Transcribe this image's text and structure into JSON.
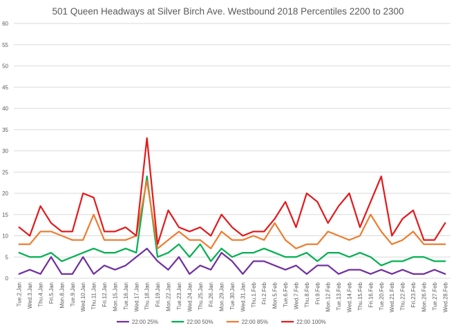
{
  "chart_data": {
    "type": "line",
    "title": "501 Queen Headways at Silver Birch Ave. Westbound 2018 Percentiles 2200 to 2300",
    "xlabel": "",
    "ylabel": "",
    "ylim": [
      0,
      60
    ],
    "yticks": [
      "0",
      "5",
      "10",
      "15",
      "20",
      "25",
      "30",
      "35",
      "40",
      "45",
      "50",
      "55",
      "60"
    ],
    "grid": true,
    "legend_position": "bottom",
    "categories": [
      "Tue.2.Jan",
      "Wed.3.Jan",
      "Thu.4.Jan",
      "Fri.5.Jan",
      "Mon.8.Jan",
      "Tue.9.Jan",
      "Wed.10.Jan",
      "Thu.11.Jan",
      "Fri.12.Jan",
      "Mon.15.Jan",
      "Tue.16.Jan",
      "Wed.17.Jan",
      "Thu.18.Jan",
      "Fri.19.Jan",
      "Mon.22.Jan",
      "Tue.23.Jan",
      "Wed.24.Jan",
      "Thu.25.Jan",
      "Fri.26.Jan",
      "Mon.29.Jan",
      "Tue.30.Jan",
      "Wed.31.Jan",
      "Thu.1.Feb",
      "Fri.2.Feb",
      "Mon.5.Feb",
      "Tue.6.Feb",
      "Wed.7.Feb",
      "Thu.8.Feb",
      "Fri.9.Feb",
      "Mon.12.Feb",
      "Tue.13.Feb",
      "Wed.14.Feb",
      "Thu.15.Feb",
      "Fri.16.Feb",
      "Tue.20.Feb",
      "Wed.21.Feb",
      "Thu.22.Feb",
      "Fri.23.Feb",
      "Mon.26.Feb",
      "Tue.27.Feb",
      "Wed.28.Feb"
    ],
    "series": [
      {
        "name": "22:00 25%",
        "color": "#7030a0",
        "values": [
          1,
          2,
          1,
          5,
          1,
          1,
          5,
          1,
          3,
          2,
          3,
          5,
          7,
          4,
          2,
          5,
          1,
          3,
          2,
          6,
          4,
          1,
          4,
          4,
          3,
          2,
          3,
          1,
          3,
          3,
          1,
          2,
          2,
          1,
          2,
          1,
          2,
          1,
          1,
          2,
          1
        ]
      },
      {
        "name": "22:00 50%",
        "color": "#00b050",
        "values": [
          6,
          5,
          5,
          6,
          4,
          5,
          6,
          7,
          6,
          6,
          7,
          6,
          24,
          5,
          6,
          8,
          5,
          8,
          4,
          7,
          5,
          6,
          6,
          7,
          6,
          5,
          5,
          6,
          4,
          6,
          6,
          5,
          6,
          5,
          3,
          4,
          4,
          5,
          5,
          4,
          4
        ]
      },
      {
        "name": "22:00 85%",
        "color": "#ed7d31",
        "values": [
          8,
          8,
          11,
          11,
          10,
          9,
          9,
          15,
          9,
          9,
          9,
          10,
          23,
          7,
          9,
          11,
          9,
          9,
          7,
          11,
          9,
          9,
          10,
          9,
          13,
          9,
          7,
          8,
          8,
          11,
          10,
          9,
          10,
          15,
          11,
          8,
          9,
          11,
          8,
          8,
          8
        ]
      },
      {
        "name": "22:00 100%",
        "color": "#e41a1c",
        "values": [
          12,
          10,
          17,
          13,
          11,
          11,
          20,
          19,
          11,
          11,
          12,
          10,
          33,
          8,
          16,
          12,
          11,
          12,
          10,
          15,
          12,
          10,
          11,
          11,
          14,
          18,
          12,
          20,
          18,
          13,
          17,
          20,
          12,
          18,
          24,
          10,
          14,
          16,
          9,
          9,
          13
        ]
      }
    ]
  }
}
